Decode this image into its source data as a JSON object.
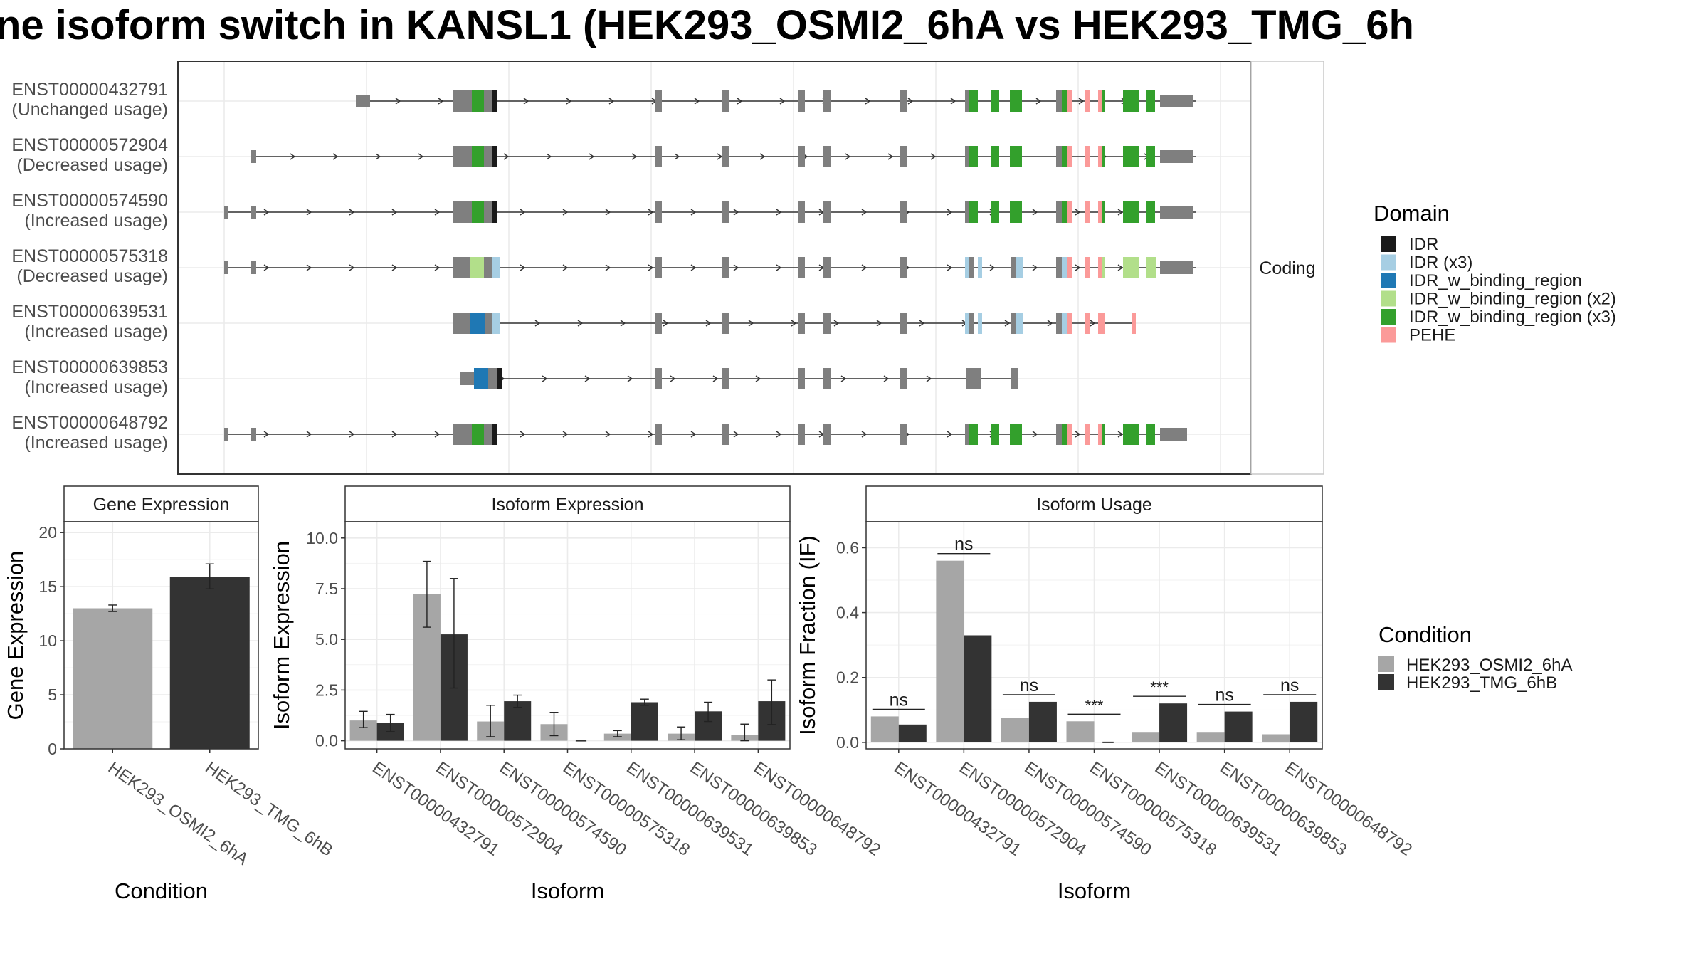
{
  "title": "ne isoform switch in KANSL1 (HEK293_OSMI2_6hA vs HEK293_TMG_6h",
  "colors": {
    "gene_body": "#7f7f7f",
    "cond_a": "#a6a6a6",
    "cond_b": "#333333",
    "IDR": "#1a1a1a",
    "IDR (x3)": "#a6cee3",
    "IDR_w_binding_region": "#1f78b4",
    "IDR_w_binding_region (x2)": "#b2df8a",
    "IDR_w_binding_region (x3)": "#33a02c",
    "PEHE": "#fb9a99"
  },
  "structure": {
    "strip_label": "Coding",
    "domain_legend_title": "Domain",
    "domain_legend": [
      "IDR",
      "IDR (x3)",
      "IDR_w_binding_region",
      "IDR_w_binding_region (x2)",
      "IDR_w_binding_region (x3)",
      "PEHE"
    ],
    "isoforms": [
      {
        "id": "ENST00000432791",
        "note": "(Unchanged usage)"
      },
      {
        "id": "ENST00000572904",
        "note": "(Decreased usage)"
      },
      {
        "id": "ENST00000574590",
        "note": "(Increased usage)"
      },
      {
        "id": "ENST00000575318",
        "note": "(Decreased usage)"
      },
      {
        "id": "ENST00000639531",
        "note": "(Increased usage)"
      },
      {
        "id": "ENST00000639853",
        "note": "(Increased usage)"
      },
      {
        "id": "ENST00000648792",
        "note": "(Increased usage)"
      }
    ]
  },
  "condition_legend": {
    "title": "Condition",
    "items": [
      "HEK293_OSMI2_6hA",
      "HEK293_TMG_6hB"
    ]
  },
  "chart_data": [
    {
      "type": "bar",
      "title": "Gene Expression",
      "ylabel": "Gene Expression",
      "xlabel": "Condition",
      "ylim": [
        0,
        21
      ],
      "yticks": [
        0,
        5,
        10,
        15,
        20
      ],
      "categories": [
        "HEK293_OSMI2_6hA",
        "HEK293_TMG_6hB"
      ],
      "values": [
        13.0,
        15.9
      ],
      "errors": [
        [
          12.7,
          13.3
        ],
        [
          14.8,
          17.1
        ]
      ]
    },
    {
      "type": "bar",
      "title": "Isoform Expression",
      "ylabel": "Isoform Expression",
      "xlabel": "Isoform",
      "ylim": [
        -0.4,
        10.8
      ],
      "yticks": [
        0.0,
        2.5,
        5.0,
        7.5,
        10.0
      ],
      "categories": [
        "ENST00000432791",
        "ENST00000572904",
        "ENST00000574590",
        "ENST00000575318",
        "ENST00000639531",
        "ENST00000639853",
        "ENST00000648792"
      ],
      "series": [
        {
          "name": "HEK293_OSMI2_6hA",
          "values": [
            1.0,
            7.25,
            0.95,
            0.82,
            0.35,
            0.35,
            0.28
          ],
          "errors": [
            [
              0.65,
              1.45
            ],
            [
              5.6,
              8.85
            ],
            [
              0.2,
              1.75
            ],
            [
              0.25,
              1.4
            ],
            [
              0.2,
              0.5
            ],
            [
              0.05,
              0.68
            ],
            [
              0.0,
              0.82
            ]
          ]
        },
        {
          "name": "HEK293_TMG_6hB",
          "values": [
            0.88,
            5.25,
            1.95,
            0.0,
            1.9,
            1.45,
            1.95
          ],
          "errors": [
            [
              0.45,
              1.3
            ],
            [
              2.6,
              8.0
            ],
            [
              1.65,
              2.25
            ],
            [
              0.0,
              0.0
            ],
            [
              1.75,
              2.05
            ],
            [
              0.95,
              1.9
            ],
            [
              0.8,
              3.0
            ]
          ]
        }
      ]
    },
    {
      "type": "bar",
      "title": "Isoform Usage",
      "ylabel": "Isoform Fraction (IF)",
      "xlabel": "Isoform",
      "ylim": [
        -0.02,
        0.68
      ],
      "yticks": [
        0.0,
        0.2,
        0.4,
        0.6
      ],
      "categories": [
        "ENST00000432791",
        "ENST00000572904",
        "ENST00000574590",
        "ENST00000575318",
        "ENST00000639531",
        "ENST00000639853",
        "ENST00000648792"
      ],
      "series": [
        {
          "name": "HEK293_OSMI2_6hA",
          "values": [
            0.08,
            0.56,
            0.075,
            0.065,
            0.03,
            0.03,
            0.025
          ]
        },
        {
          "name": "HEK293_TMG_6hB",
          "values": [
            0.055,
            0.33,
            0.125,
            0.0,
            0.12,
            0.095,
            0.125
          ]
        }
      ],
      "significance": [
        "ns",
        "ns",
        "ns",
        "***",
        "***",
        "ns",
        "ns"
      ]
    }
  ]
}
